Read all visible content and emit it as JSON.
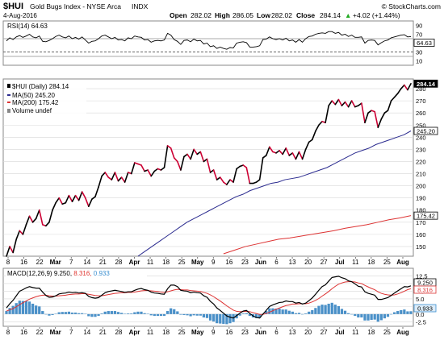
{
  "header": {
    "symbol": "$HUI",
    "index_name": "Gold Bugs Index - NYSE Arca",
    "exchange": "INDX",
    "date": "4-Aug-2016",
    "watermark": "© StockCharts.com",
    "ohlc": [
      {
        "label": "Open",
        "value": "282.02"
      },
      {
        "label": "High",
        "value": "286.05"
      },
      {
        "label": "Low",
        "value": "282.02"
      },
      {
        "label": "Close",
        "value": "284.14"
      }
    ],
    "change": "+4.02 (+1.44%)",
    "change_arrow": "▲"
  },
  "colors": {
    "price": "#000000",
    "price_down": "#cc0033",
    "ma50": "#2b2b8f",
    "ma200": "#dd3333",
    "macd": "#000000",
    "signal": "#dd3333",
    "histogram": "#4a90c8",
    "macd_value": "#e0342e",
    "macd_value2": "#3b8fd0",
    "grid": "#d8d8d8"
  },
  "rsi_panel": {
    "legend": "RSI(14) 64.63",
    "ticks": [
      "90",
      "70",
      "50",
      "30",
      "10"
    ],
    "last_tag": "64.63"
  },
  "price_panel": {
    "legend": [
      {
        "text": "$HUI (Daily) 284.14",
        "color": "#000000"
      },
      {
        "text": "MA(50) 245.20",
        "color": "#2b2b8f"
      },
      {
        "text": "MA(200) 175.42",
        "color": "#dd3333"
      },
      {
        "text": "Volume undef",
        "color": "#555555"
      }
    ],
    "ticks": [
      "280",
      "270",
      "260",
      "250",
      "240",
      "230",
      "220",
      "210",
      "200",
      "190",
      "180",
      "170",
      "160",
      "150"
    ],
    "tags": [
      {
        "text": "284.14",
        "value": 284.14,
        "style": "dark"
      },
      {
        "text": "245.20",
        "value": 245.2,
        "style": "light"
      },
      {
        "text": "175.42",
        "value": 175.42,
        "style": "light"
      }
    ]
  },
  "macd_panel": {
    "legend_prefix": "MACD(12,26,9)",
    "legend_macd": "9.250,",
    "legend_signal": "8.316,",
    "legend_hist": "0.933",
    "ticks": [
      "12.5",
      "10.0",
      "7.5",
      "5.0",
      "2.5",
      "0.0",
      "-2.5"
    ],
    "tags": [
      "9.250",
      "8.316",
      "0.933"
    ]
  },
  "x_axis": {
    "labels": [
      {
        "text": "8",
        "bold": false
      },
      {
        "text": "16",
        "bold": false
      },
      {
        "text": "22",
        "bold": false
      },
      {
        "text": "Mar",
        "bold": true
      },
      {
        "text": "7",
        "bold": false
      },
      {
        "text": "14",
        "bold": false
      },
      {
        "text": "21",
        "bold": false
      },
      {
        "text": "28",
        "bold": false
      },
      {
        "text": "Apr",
        "bold": true
      },
      {
        "text": "11",
        "bold": false
      },
      {
        "text": "18",
        "bold": false
      },
      {
        "text": "25",
        "bold": false
      },
      {
        "text": "May",
        "bold": true
      },
      {
        "text": "9",
        "bold": false
      },
      {
        "text": "16",
        "bold": false
      },
      {
        "text": "23",
        "bold": false
      },
      {
        "text": "Jun",
        "bold": true
      },
      {
        "text": "6",
        "bold": false
      },
      {
        "text": "13",
        "bold": false
      },
      {
        "text": "20",
        "bold": false
      },
      {
        "text": "27",
        "bold": false
      },
      {
        "text": "Jul",
        "bold": true
      },
      {
        "text": "11",
        "bold": false
      },
      {
        "text": "18",
        "bold": false
      },
      {
        "text": "25",
        "bold": false
      },
      {
        "text": "Aug",
        "bold": true
      }
    ]
  },
  "chart_data": {
    "type": "line",
    "title": "$HUI Gold Bugs Index - NYSE Arca INDX",
    "x_range": [
      "Feb 2016",
      "4-Aug-2016"
    ],
    "series": [
      {
        "name": "$HUI (Daily)",
        "panel": "price",
        "y_range": [
          142,
          288
        ],
        "values": [
          142,
          150,
          145,
          156,
          163,
          160,
          168,
          175,
          170,
          173,
          180,
          168,
          167,
          170,
          180,
          186,
          190,
          185,
          186,
          192,
          187,
          192,
          188,
          195,
          190,
          183,
          189,
          191,
          199,
          208,
          211,
          207,
          205,
          211,
          204,
          207,
          203,
          211,
          210,
          219,
          218,
          217,
          212,
          213,
          208,
          212,
          214,
          213,
          215,
          233,
          231,
          223,
          220,
          213,
          224,
          226,
          222,
          230,
          226,
          228,
          220,
          222,
          211,
          213,
          205,
          207,
          203,
          201,
          205,
          203,
          214,
          216,
          217,
          215,
          202,
          202,
          203,
          205,
          223,
          225,
          232,
          228,
          227,
          229,
          226,
          231,
          225,
          227,
          222,
          228,
          222,
          230,
          236,
          238,
          245,
          250,
          253,
          252,
          266,
          270,
          267,
          271,
          266,
          269,
          265,
          270,
          265,
          266,
          268,
          252,
          260,
          262,
          261,
          248,
          255,
          260,
          262,
          270,
          273,
          276,
          280,
          283,
          279,
          284.14
        ]
      },
      {
        "name": "MA(50)",
        "panel": "price",
        "start": 40,
        "values": [
          142,
          146,
          150,
          154,
          158,
          162,
          166,
          170,
          173,
          176,
          179,
          182,
          185,
          188,
          191,
          193,
          196,
          198,
          200,
          202,
          203,
          205,
          206,
          207,
          209,
          211,
          213,
          215,
          218,
          221,
          224,
          227,
          229,
          231,
          234,
          236,
          238,
          240,
          242,
          245.2
        ]
      },
      {
        "name": "MA(200)",
        "panel": "price",
        "start": 66,
        "values": [
          144,
          147,
          150,
          152,
          154,
          156,
          157,
          158.5,
          160,
          161.5,
          163,
          165,
          166.5,
          168,
          170,
          172,
          173.5,
          175.42
        ]
      },
      {
        "name": "RSI(14)",
        "panel": "rsi",
        "y_range": [
          0,
          100
        ],
        "values": [
          55,
          62,
          58,
          64,
          67,
          63,
          66,
          70,
          64,
          62,
          66,
          54,
          53,
          56,
          60,
          65,
          68,
          64,
          62,
          66,
          60,
          63,
          59,
          64,
          57,
          50,
          54,
          55,
          60,
          66,
          68,
          64,
          60,
          63,
          57,
          58,
          55,
          62,
          60,
          66,
          64,
          63,
          57,
          58,
          52,
          55,
          56,
          55,
          57,
          72,
          68,
          58,
          54,
          47,
          56,
          57,
          53,
          59,
          55,
          56,
          48,
          50,
          42,
          44,
          38,
          41,
          38,
          36,
          40,
          39,
          50,
          52,
          53,
          51,
          41,
          41,
          42,
          44,
          58,
          59,
          64,
          60,
          58,
          60,
          57,
          61,
          55,
          57,
          52,
          58,
          52,
          60,
          65,
          66,
          70,
          72,
          73,
          72,
          76,
          76,
          72,
          74,
          68,
          70,
          65,
          68,
          63,
          63,
          64,
          50,
          56,
          57,
          56,
          46,
          51,
          55,
          57,
          62,
          64,
          66,
          68,
          69,
          64,
          64.63
        ]
      },
      {
        "name": "MACD",
        "panel": "macd",
        "y_range": [
          -4,
          15
        ],
        "values": [
          2.0,
          3.4,
          4.5,
          6.0,
          7.5,
          8.0,
          8.6,
          9.0,
          8.7,
          8.5,
          8.5,
          7.2,
          6.1,
          5.5,
          5.6,
          6.0,
          6.6,
          6.8,
          6.9,
          7.2,
          7.0,
          7.1,
          6.9,
          7.0,
          6.8,
          5.8,
          5.4,
          5.2,
          5.4,
          6.2,
          7.0,
          7.4,
          7.6,
          7.8,
          7.6,
          7.4,
          7.1,
          7.3,
          7.3,
          7.8,
          8.2,
          8.4,
          8.0,
          7.8,
          7.2,
          6.9,
          6.8,
          6.6,
          6.5,
          8.3,
          9.5,
          9.5,
          9.0,
          7.8,
          7.6,
          7.5,
          7.0,
          7.2,
          7.0,
          6.9,
          6.0,
          5.5,
          4.2,
          3.3,
          2.0,
          1.2,
          0.3,
          -0.6,
          -1.0,
          -1.3,
          -0.5,
          0.3,
          1.0,
          1.2,
          0.2,
          -0.6,
          -1.1,
          -1.3,
          0.0,
          1.2,
          2.5,
          3.0,
          3.4,
          3.8,
          3.9,
          4.3,
          4.1,
          4.1,
          3.6,
          3.8,
          3.3,
          3.6,
          4.4,
          5.3,
          6.5,
          7.8,
          9.0,
          9.6,
          10.8,
          12.0,
          12.2,
          12.4,
          11.9,
          11.6,
          10.9,
          10.6,
          9.9,
          9.1,
          8.9,
          7.3,
          6.8,
          6.5,
          6.2,
          4.8,
          4.8,
          5.1,
          5.4,
          6.1,
          6.9,
          7.6,
          8.3,
          9.0,
          8.9,
          9.25
        ]
      },
      {
        "name": "Signal",
        "panel": "macd",
        "y_range": [
          -4,
          15
        ],
        "values": [
          1.0,
          1.4,
          1.8,
          2.4,
          3.1,
          3.7,
          4.3,
          4.9,
          5.3,
          5.7,
          6.0,
          6.2,
          6.2,
          6.0,
          5.9,
          5.9,
          6.0,
          6.1,
          6.2,
          6.4,
          6.5,
          6.6,
          6.6,
          6.7,
          6.7,
          6.5,
          6.3,
          6.1,
          6.0,
          6.0,
          6.2,
          6.4,
          6.6,
          6.8,
          6.9,
          7.0,
          7.0,
          7.1,
          7.1,
          7.2,
          7.4,
          7.6,
          7.7,
          7.7,
          7.6,
          7.5,
          7.4,
          7.2,
          7.1,
          7.3,
          7.6,
          7.9,
          8.1,
          8.0,
          7.9,
          7.9,
          7.7,
          7.6,
          7.5,
          7.4,
          7.1,
          6.8,
          6.3,
          5.7,
          5.0,
          4.3,
          3.5,
          2.7,
          2.0,
          1.3,
          0.9,
          0.8,
          0.8,
          0.9,
          0.8,
          0.5,
          0.2,
          -0.1,
          -0.1,
          0.2,
          0.6,
          1.1,
          1.6,
          2.0,
          2.4,
          2.8,
          3.0,
          3.3,
          3.3,
          3.4,
          3.4,
          3.4,
          3.6,
          4.0,
          4.5,
          5.1,
          5.9,
          6.6,
          7.4,
          8.3,
          9.1,
          9.8,
          10.2,
          10.5,
          10.6,
          10.6,
          10.5,
          10.2,
          10.0,
          9.4,
          8.9,
          8.4,
          8.0,
          7.3,
          6.8,
          6.5,
          6.3,
          6.2,
          6.3,
          6.6,
          7.0,
          7.5,
          8.0,
          8.316
        ]
      }
    ]
  }
}
